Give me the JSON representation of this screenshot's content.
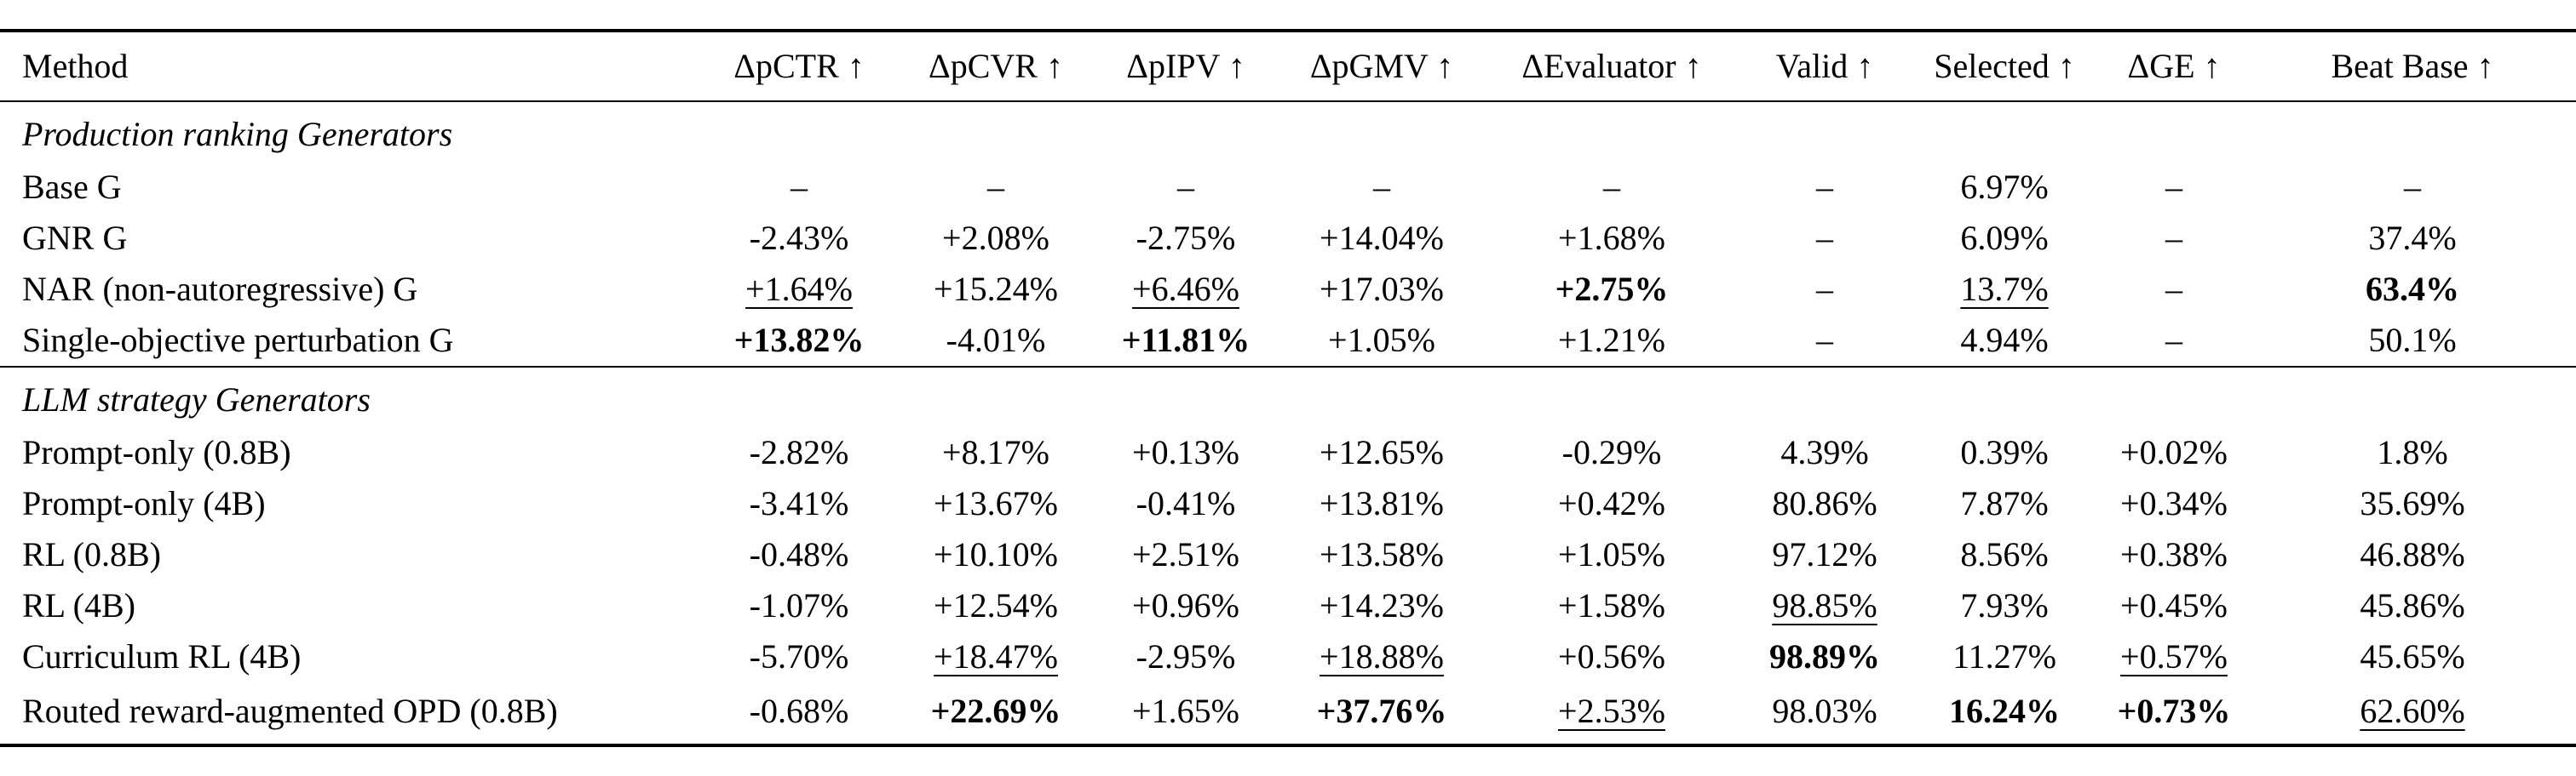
{
  "columns": [
    "Method",
    "ΔpCTR ↑",
    "ΔpCVR ↑",
    "ΔpIPV ↑",
    "ΔpGMV ↑",
    "ΔEvaluator ↑",
    "Valid ↑",
    "Selected ↑",
    "ΔGE ↑",
    "Beat Base ↑"
  ],
  "sections": [
    {
      "title": "Production ranking Generators",
      "rows": [
        {
          "method": "Base G",
          "cells": [
            "–",
            "–",
            "–",
            "–",
            "–",
            "–",
            "6.97%",
            "–",
            "–"
          ],
          "bold": [],
          "underline": []
        },
        {
          "method": "GNR G",
          "cells": [
            "-2.43%",
            "+2.08%",
            "-2.75%",
            "+14.04%",
            "+1.68%",
            "–",
            "6.09%",
            "–",
            "37.4%"
          ],
          "bold": [],
          "underline": []
        },
        {
          "method": "NAR (non-autoregressive) G",
          "cells": [
            "+1.64%",
            "+15.24%",
            "+6.46%",
            "+17.03%",
            "+2.75%",
            "–",
            "13.7%",
            "–",
            "63.4%"
          ],
          "bold": [
            4,
            8
          ],
          "underline": [
            0,
            2,
            6
          ]
        },
        {
          "method": "Single-objective perturbation G",
          "cells": [
            "+13.82%",
            "-4.01%",
            "+11.81%",
            "+1.05%",
            "+1.21%",
            "–",
            "4.94%",
            "–",
            "50.1%"
          ],
          "bold": [
            0,
            2
          ],
          "underline": []
        }
      ]
    },
    {
      "title": "LLM strategy Generators",
      "rows": [
        {
          "method": "Prompt-only (0.8B)",
          "cells": [
            "-2.82%",
            "+8.17%",
            "+0.13%",
            "+12.65%",
            "-0.29%",
            "4.39%",
            "0.39%",
            "+0.02%",
            "1.8%"
          ],
          "bold": [],
          "underline": []
        },
        {
          "method": "Prompt-only (4B)",
          "cells": [
            "-3.41%",
            "+13.67%",
            "-0.41%",
            "+13.81%",
            "+0.42%",
            "80.86%",
            "7.87%",
            "+0.34%",
            "35.69%"
          ],
          "bold": [],
          "underline": []
        },
        {
          "method": "RL (0.8B)",
          "cells": [
            "-0.48%",
            "+10.10%",
            "+2.51%",
            "+13.58%",
            "+1.05%",
            "97.12%",
            "8.56%",
            "+0.38%",
            "46.88%"
          ],
          "bold": [],
          "underline": []
        },
        {
          "method": "RL (4B)",
          "cells": [
            "-1.07%",
            "+12.54%",
            "+0.96%",
            "+14.23%",
            "+1.58%",
            "98.85%",
            "7.93%",
            "+0.45%",
            "45.86%"
          ],
          "bold": [],
          "underline": [
            5
          ]
        },
        {
          "method": "Curriculum RL (4B)",
          "cells": [
            "-5.70%",
            "+18.47%",
            "-2.95%",
            "+18.88%",
            "+0.56%",
            "98.89%",
            "11.27%",
            "+0.57%",
            "45.65%"
          ],
          "bold": [
            5
          ],
          "underline": [
            1,
            3,
            7
          ]
        },
        {
          "method": "Routed reward-augmented OPD (0.8B)",
          "cells": [
            "-0.68%",
            "+22.69%",
            "+1.65%",
            "+37.76%",
            "+2.53%",
            "98.03%",
            "16.24%",
            "+0.73%",
            "62.60%"
          ],
          "bold": [
            1,
            3,
            6,
            7
          ],
          "underline": [
            4,
            8
          ]
        }
      ]
    }
  ]
}
